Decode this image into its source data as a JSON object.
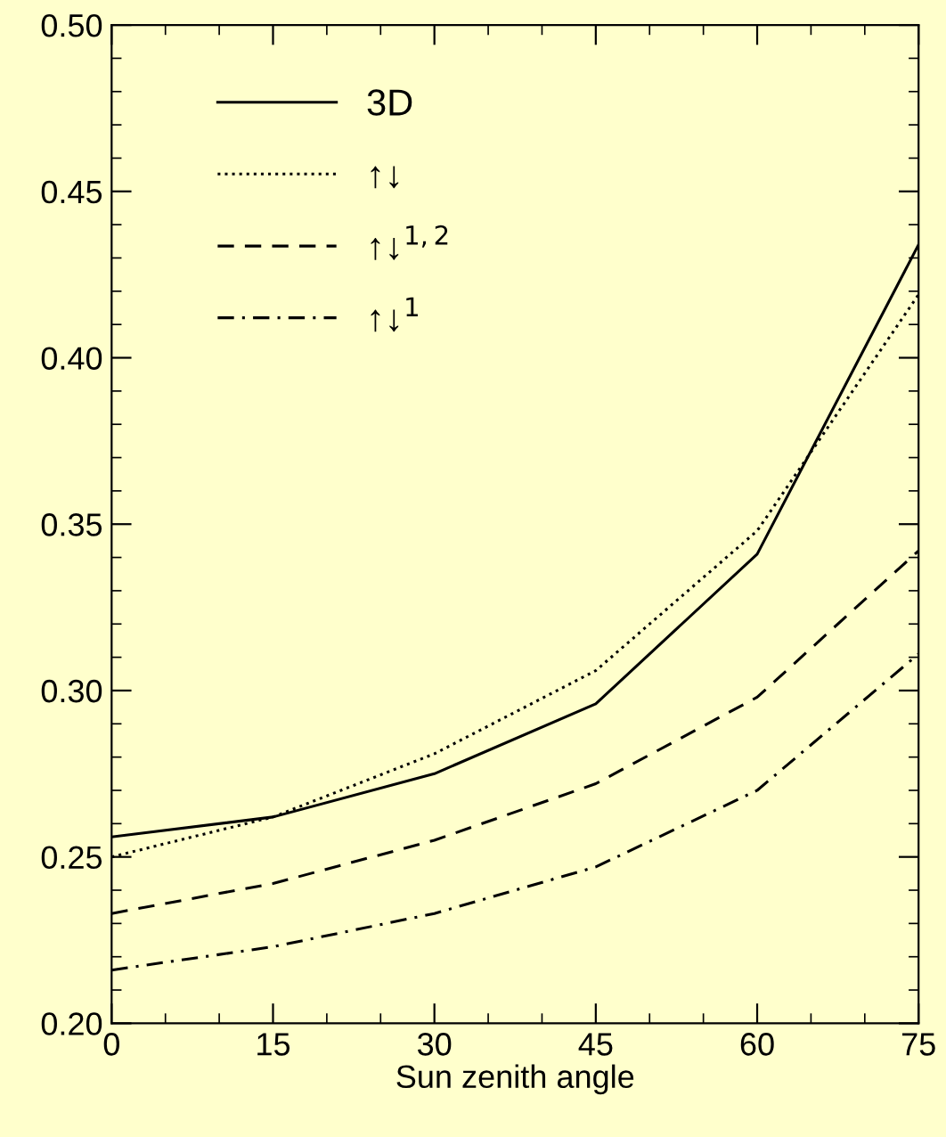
{
  "chart_data": {
    "type": "line",
    "xlabel": "Sun zenith angle",
    "x": [
      0,
      15,
      30,
      45,
      60,
      75
    ],
    "xlim": [
      0,
      75
    ],
    "xticks": [
      0,
      15,
      30,
      45,
      60,
      75
    ],
    "ylim": [
      0.2,
      0.5
    ],
    "yticks": [
      {
        "value": 0.2,
        "label": "0.20"
      },
      {
        "value": 0.25,
        "label": "0.25"
      },
      {
        "value": 0.3,
        "label": "0.30"
      },
      {
        "value": 0.35,
        "label": "0.35"
      },
      {
        "value": 0.4,
        "label": "0.40"
      },
      {
        "value": 0.45,
        "label": "0.45"
      },
      {
        "value": 0.5,
        "label": "0.50"
      }
    ],
    "grid": false,
    "legend": "top left",
    "marker": "none",
    "series": [
      {
        "name": "3D",
        "color": "#000000",
        "line_style": "solid",
        "values": [
          0.256,
          0.262,
          0.275,
          0.296,
          0.341,
          0.434
        ]
      },
      {
        "name": "↑↓",
        "color": "#000000",
        "line_style": "dotted",
        "values": [
          0.25,
          0.262,
          0.281,
          0.306,
          0.348,
          0.419
        ]
      },
      {
        "name": "↑↓$^{1,2}$",
        "color": "#000000",
        "line_style": "dashed",
        "values": [
          0.233,
          0.242,
          0.255,
          0.272,
          0.298,
          0.342
        ]
      },
      {
        "name": "↑↓$^{1}$",
        "color": "#000000",
        "line_style": "dashdot",
        "values": [
          0.216,
          0.223,
          0.233,
          0.247,
          0.27,
          0.311
        ]
      }
    ]
  }
}
